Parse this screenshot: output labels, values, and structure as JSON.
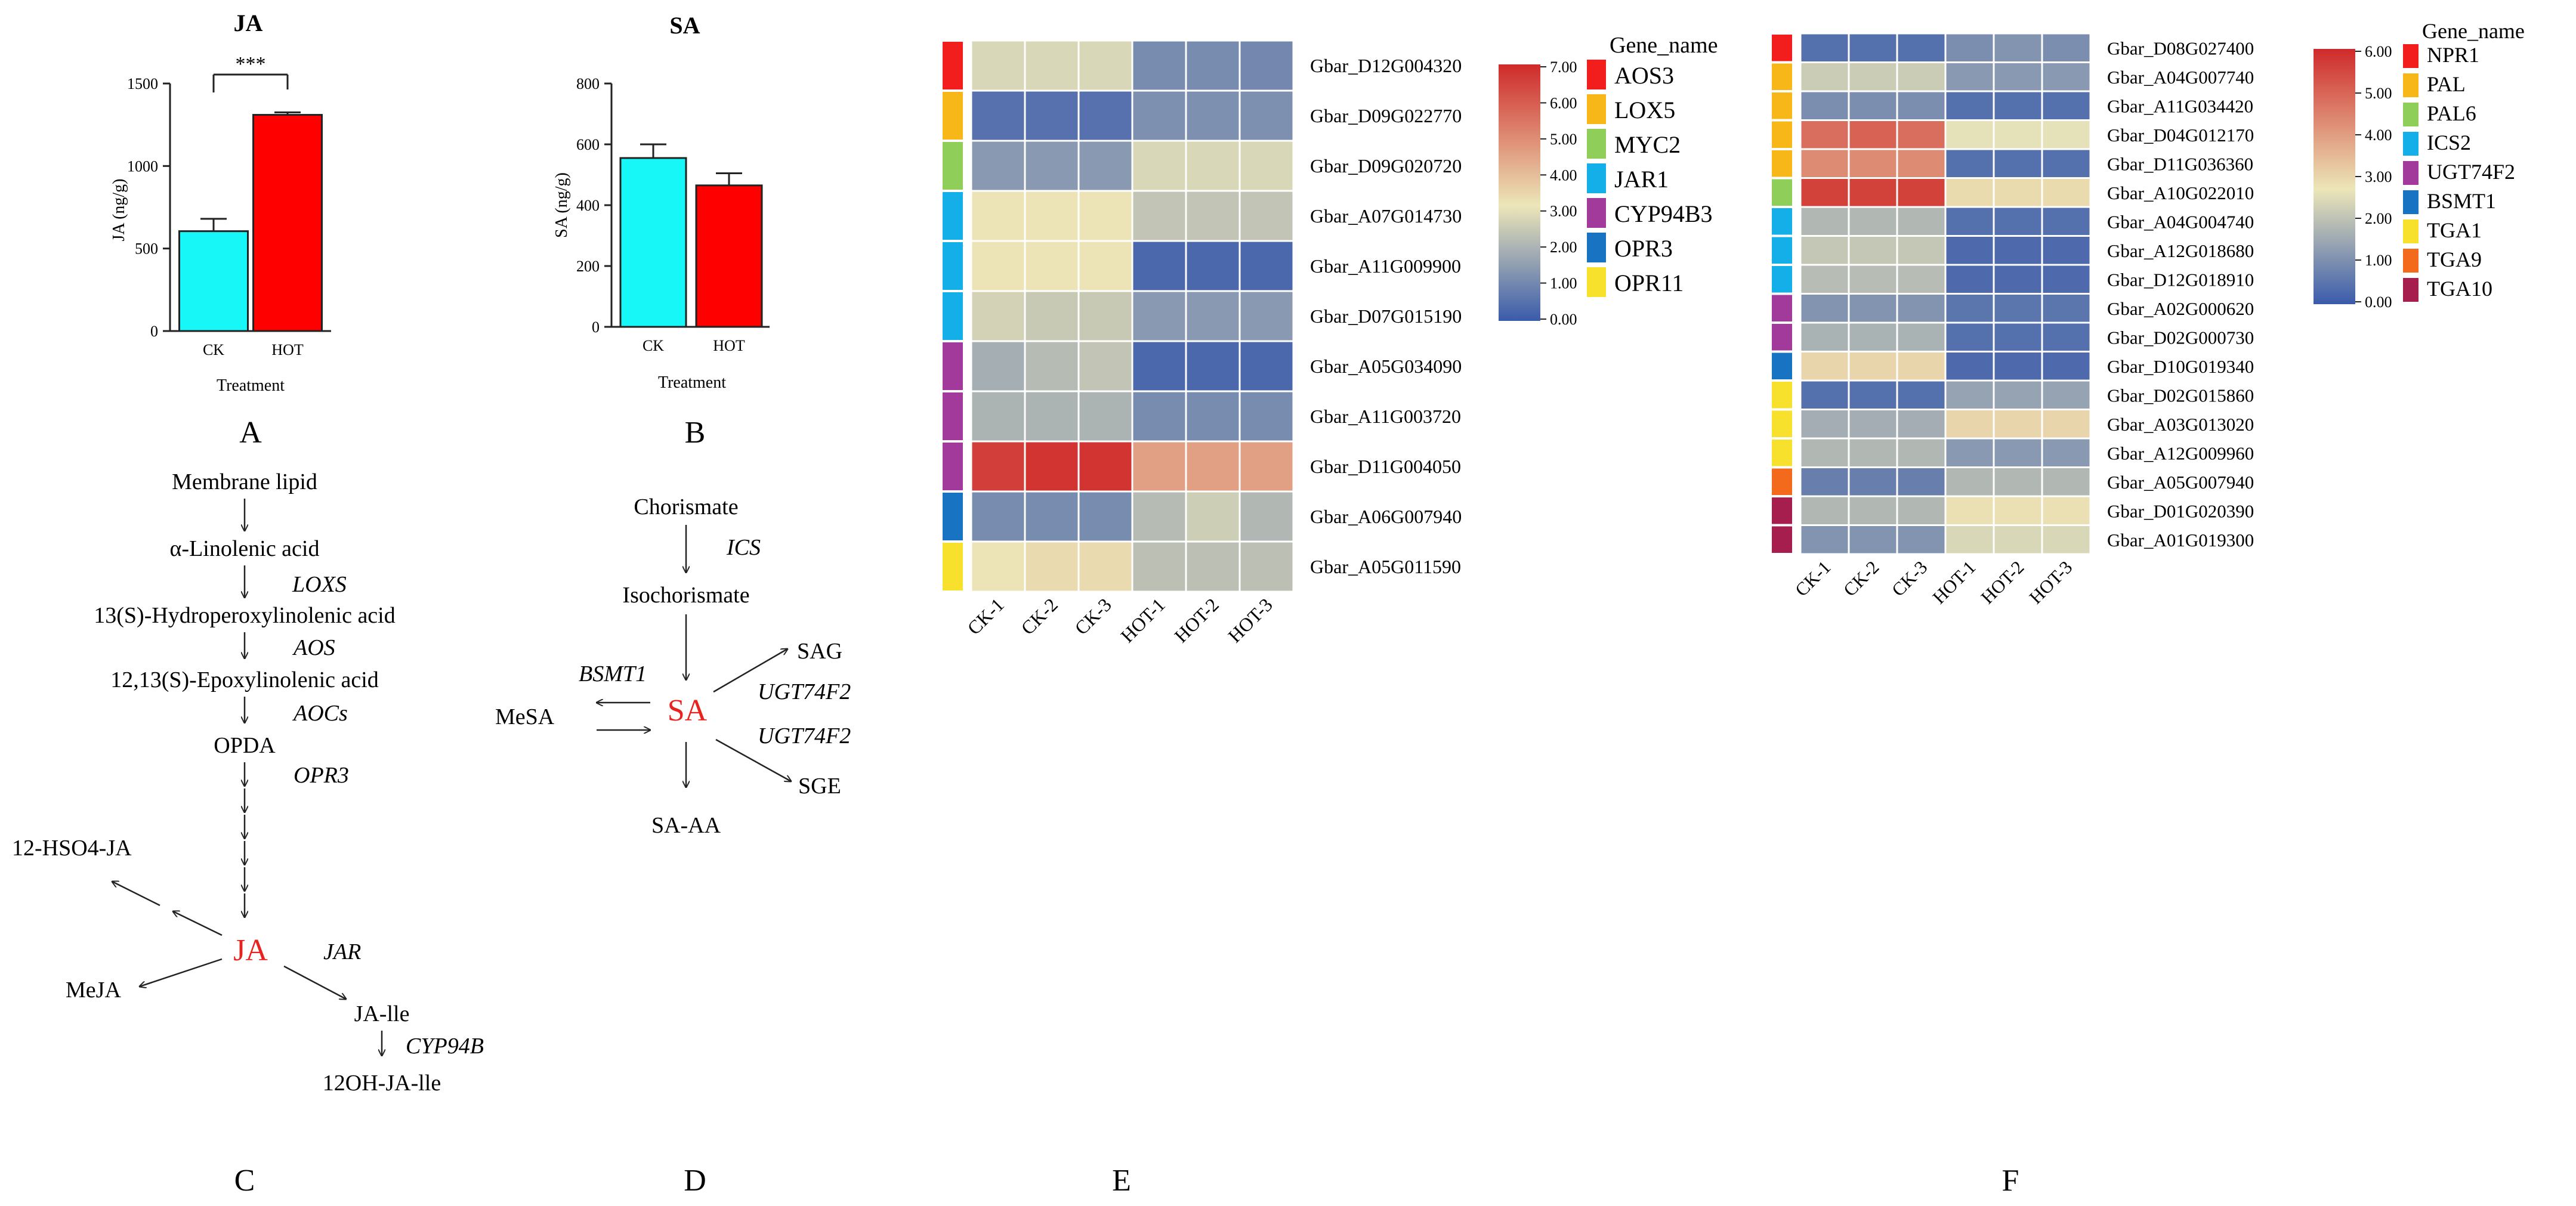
{
  "panel_labels": {
    "a": "A",
    "b": "B",
    "c": "C",
    "d": "D",
    "e": "E",
    "f": "F"
  },
  "pathway_c": {
    "nodes": [
      "Membrane lipid",
      "α-Linolenic acid",
      "13(S)-Hydroperoxylinolenic acid",
      "12,13(S)-Epoxylinolenic acid",
      "OPDA",
      "JA",
      "12-HSO4-JA",
      "MeJA",
      "JA-lle",
      "12OH-JA-lle"
    ],
    "enzymes": [
      "LOXS",
      "AOS",
      "AOCs",
      "OPR3",
      "JAR",
      "CYP94B"
    ]
  },
  "pathway_d": {
    "nodes": [
      "Chorismate",
      "Isochorismate",
      "SA",
      "MeSA",
      "SAG",
      "SGE",
      "SA-AA"
    ],
    "enzymes": [
      "ICS",
      "BSMT1",
      "UGT74F2",
      "UGT74F2"
    ]
  },
  "colors": {
    "cyan_bar": "#17f7f7",
    "red_bar": "#ff0000",
    "highlight_red": "#e8231e",
    "heat_low": "#3a5bab",
    "heat_mid": "#ece6b8",
    "heat_high": "#cf2a2a"
  },
  "chart_data": [
    {
      "id": "A",
      "type": "bar",
      "title": "JA",
      "xlabel": "Treatment",
      "ylabel": "JA (ng/g)",
      "categories": [
        "CK",
        "HOT"
      ],
      "values": [
        605,
        1310
      ],
      "errors": [
        75,
        15
      ],
      "ylim": [
        0,
        1500
      ],
      "yticks": [
        "0",
        "500",
        "1000",
        "1500"
      ],
      "significance": "***"
    },
    {
      "id": "B",
      "type": "bar",
      "title": "SA",
      "xlabel": "Treatment",
      "ylabel": "SA (ng/g)",
      "categories": [
        "CK",
        "HOT"
      ],
      "values": [
        555,
        465
      ],
      "errors": [
        45,
        40
      ],
      "ylim": [
        0,
        800
      ],
      "yticks": [
        "0",
        "200",
        "400",
        "600",
        "800"
      ]
    },
    {
      "id": "E",
      "type": "heatmap",
      "columns": [
        "CK-1",
        "CK-2",
        "CK-3",
        "HOT-1",
        "HOT-2",
        "HOT-3"
      ],
      "rows": [
        {
          "gene": "Gbar_D12G004320",
          "group": "AOS3",
          "values": [
            2.8,
            2.8,
            2.8,
            1.1,
            1.1,
            1.0
          ]
        },
        {
          "gene": "Gbar_D09G022770",
          "group": "LOX5",
          "values": [
            0.5,
            0.5,
            0.5,
            1.2,
            1.2,
            1.2
          ]
        },
        {
          "gene": "Gbar_D09G020720",
          "group": "MYC2",
          "values": [
            1.4,
            1.4,
            1.4,
            2.8,
            2.8,
            2.8
          ]
        },
        {
          "gene": "Gbar_A07G014730",
          "group": "JAR1",
          "values": [
            3.2,
            3.2,
            3.2,
            2.4,
            2.4,
            2.4
          ]
        },
        {
          "gene": "Gbar_A11G009900",
          "group": "JAR1",
          "values": [
            3.2,
            3.2,
            3.2,
            0.3,
            0.3,
            0.3
          ]
        },
        {
          "gene": "Gbar_D07G015190",
          "group": "JAR1",
          "values": [
            2.7,
            2.5,
            2.5,
            1.4,
            1.4,
            1.4
          ]
        },
        {
          "gene": "Gbar_A05G034090",
          "group": "CYP94B3",
          "values": [
            1.9,
            2.2,
            2.4,
            0.3,
            0.3,
            0.3
          ]
        },
        {
          "gene": "Gbar_A11G003720",
          "group": "CYP94B3",
          "values": [
            2.0,
            2.0,
            2.0,
            1.1,
            1.1,
            1.1
          ]
        },
        {
          "gene": "Gbar_D11G004050",
          "group": "CYP94B3",
          "values": [
            6.6,
            6.8,
            6.8,
            4.6,
            4.6,
            4.6
          ]
        },
        {
          "gene": "Gbar_A06G007940",
          "group": "OPR3",
          "values": [
            1.1,
            1.1,
            1.1,
            2.2,
            2.6,
            2.1
          ]
        },
        {
          "gene": "Gbar_A05G011590",
          "group": "OPR11",
          "values": [
            3.2,
            3.4,
            3.4,
            2.3,
            2.3,
            2.3
          ]
        }
      ],
      "groups": [
        {
          "name": "AOS3",
          "color": "#f21d1d"
        },
        {
          "name": "LOX5",
          "color": "#f7b718"
        },
        {
          "name": "MYC2",
          "color": "#8fce59"
        },
        {
          "name": "JAR1",
          "color": "#14aee8"
        },
        {
          "name": "CYP94B3",
          "color": "#a23a9c"
        },
        {
          "name": "OPR3",
          "color": "#1873c2"
        },
        {
          "name": "OPR11",
          "color": "#f8e12c"
        }
      ],
      "legend_title": "Gene_name",
      "scale_range": [
        0,
        7
      ],
      "scale_ticks": [
        "7.00",
        "6.00",
        "5.00",
        "4.00",
        "3.00",
        "2.00",
        "1.00",
        "0.00"
      ]
    },
    {
      "id": "F",
      "type": "heatmap",
      "columns": [
        "CK-1",
        "CK-2",
        "CK-3",
        "HOT-1",
        "HOT-2",
        "HOT-3"
      ],
      "rows": [
        {
          "gene": "Gbar_D08G027400",
          "group": "NPR1",
          "values": [
            0.4,
            0.4,
            0.4,
            1.0,
            1.1,
            1.0
          ]
        },
        {
          "gene": "Gbar_A04G007740",
          "group": "PAL",
          "values": [
            2.2,
            2.2,
            2.2,
            1.2,
            1.2,
            1.2
          ]
        },
        {
          "gene": "Gbar_A11G034420",
          "group": "PAL",
          "values": [
            1.0,
            1.0,
            1.0,
            0.4,
            0.4,
            0.4
          ]
        },
        {
          "gene": "Gbar_D04G012170",
          "group": "PAL",
          "values": [
            4.8,
            5.0,
            4.8,
            2.6,
            2.6,
            2.6
          ]
        },
        {
          "gene": "Gbar_D11G036360",
          "group": "PAL",
          "values": [
            4.3,
            4.3,
            4.3,
            0.4,
            0.4,
            0.4
          ]
        },
        {
          "gene": "Gbar_A10G022010",
          "group": "PAL6",
          "values": [
            5.6,
            5.6,
            5.6,
            2.9,
            2.9,
            2.9
          ]
        },
        {
          "gene": "Gbar_A04G004740",
          "group": "ICS2",
          "values": [
            1.8,
            1.8,
            1.8,
            0.4,
            0.4,
            0.4
          ]
        },
        {
          "gene": "Gbar_A12G018680",
          "group": "ICS2",
          "values": [
            2.1,
            2.1,
            2.1,
            0.3,
            0.3,
            0.3
          ]
        },
        {
          "gene": "Gbar_D12G018910",
          "group": "ICS2",
          "values": [
            1.9,
            1.9,
            1.9,
            0.3,
            0.3,
            0.3
          ]
        },
        {
          "gene": "Gbar_A02G000620",
          "group": "UGT74F2",
          "values": [
            1.1,
            1.1,
            1.1,
            0.5,
            0.5,
            0.5
          ]
        },
        {
          "gene": "Gbar_D02G000730",
          "group": "UGT74F2",
          "values": [
            1.7,
            1.7,
            1.7,
            0.4,
            0.4,
            0.4
          ]
        },
        {
          "gene": "Gbar_D10G019340",
          "group": "BSMT1",
          "values": [
            3.0,
            3.0,
            3.0,
            0.3,
            0.3,
            0.3
          ]
        },
        {
          "gene": "Gbar_D02G015860",
          "group": "TGA1",
          "values": [
            0.4,
            0.4,
            0.4,
            1.4,
            1.4,
            1.4
          ]
        },
        {
          "gene": "Gbar_A03G013020",
          "group": "TGA1",
          "values": [
            1.6,
            1.6,
            1.6,
            3.0,
            3.0,
            3.0
          ]
        },
        {
          "gene": "Gbar_A12G009960",
          "group": "TGA1",
          "values": [
            1.8,
            1.8,
            1.8,
            1.2,
            1.2,
            1.2
          ]
        },
        {
          "gene": "Gbar_A05G007940",
          "group": "TGA9",
          "values": [
            0.7,
            0.7,
            0.7,
            1.8,
            1.8,
            1.8
          ]
        },
        {
          "gene": "Gbar_D01G020390",
          "group": "TGA10",
          "values": [
            1.8,
            1.8,
            1.8,
            2.8,
            2.8,
            2.8
          ]
        },
        {
          "gene": "Gbar_A01G019300",
          "group": "TGA10",
          "values": [
            1.1,
            1.1,
            1.1,
            2.4,
            2.4,
            2.4
          ]
        }
      ],
      "groups": [
        {
          "name": "NPR1",
          "color": "#f21d1d"
        },
        {
          "name": "PAL",
          "color": "#f7b718"
        },
        {
          "name": "PAL6",
          "color": "#8fce59"
        },
        {
          "name": "ICS2",
          "color": "#14aee8"
        },
        {
          "name": "UGT74F2",
          "color": "#a23a9c"
        },
        {
          "name": "BSMT1",
          "color": "#1873c2"
        },
        {
          "name": "TGA1",
          "color": "#f8e12c"
        },
        {
          "name": "TGA9",
          "color": "#f36a1c"
        },
        {
          "name": "TGA10",
          "color": "#a61e4d"
        }
      ],
      "legend_title": "Gene_name",
      "scale_range": [
        0,
        6
      ],
      "scale_ticks": [
        "6.00",
        "5.00",
        "4.00",
        "3.00",
        "2.00",
        "1.00",
        "0.00"
      ]
    }
  ]
}
